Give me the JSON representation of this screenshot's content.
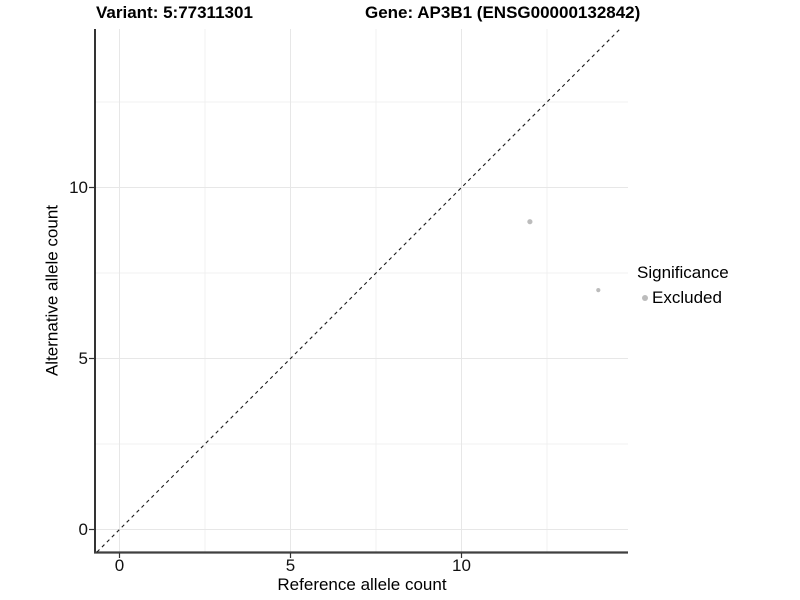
{
  "titles": {
    "variant": "Variant: 5:77311301",
    "gene": "Gene: AP3B1 (ENSG00000132842)"
  },
  "legend": {
    "title": "Significance",
    "items": [
      {
        "label": "Excluded",
        "color": "#bcbcbc"
      }
    ]
  },
  "chart_data": {
    "type": "scatter",
    "title": "Variant: 5:77311301 / Gene: AP3B1 (ENSG00000132842)",
    "xlabel": "Reference allele count",
    "ylabel": "Alternative allele count",
    "xlim": [
      -0.72,
      14.87
    ],
    "ylim": [
      -0.66,
      14.64
    ],
    "x_major_ticks": [
      0,
      5,
      10
    ],
    "y_major_ticks": [
      0,
      5,
      10
    ],
    "x_minor_gridlines": [
      2.5,
      7.5,
      12.5
    ],
    "y_minor_gridlines": [
      2.5,
      7.5,
      12.5
    ],
    "grid": "major and minor gridlines, light gray on white panel",
    "legend_position": "right-center",
    "reference_line": {
      "equation": "y = x",
      "style": "dashed",
      "color": "#1c1c1c"
    },
    "series": [
      {
        "name": "Excluded",
        "color": "#bcbcbc",
        "points": [
          {
            "x": 12,
            "y": 9,
            "r": 2.6
          },
          {
            "x": 14,
            "y": 7,
            "r": 2.1
          }
        ]
      }
    ],
    "colors": {
      "major_grid": "#e7e7e7",
      "minor_grid": "#f1f1f1",
      "left_axis_line": "#000000",
      "bottom_axis_line": "#404040",
      "tick_mark": "#333333",
      "point": "#bcbcbc"
    }
  }
}
